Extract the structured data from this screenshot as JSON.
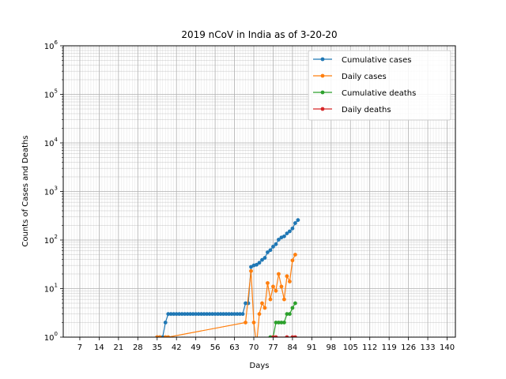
{
  "chart_data": {
    "type": "line",
    "title": "2019 nCoV in India as of 3-20-20",
    "xlabel": "Days",
    "ylabel": "Counts of Cases and Deaths",
    "xlim": [
      1,
      143
    ],
    "ylim": [
      1,
      1000000
    ],
    "yscale": "log",
    "grid": true,
    "legend_position": "top-right",
    "x_ticks": [
      7,
      14,
      21,
      28,
      35,
      42,
      49,
      56,
      63,
      70,
      77,
      84,
      91,
      98,
      105,
      112,
      119,
      126,
      133,
      140
    ],
    "y_ticks": [
      {
        "value": 1,
        "base": "10",
        "exp": "0"
      },
      {
        "value": 10,
        "base": "10",
        "exp": "1"
      },
      {
        "value": 100,
        "base": "10",
        "exp": "2"
      },
      {
        "value": 1000,
        "base": "10",
        "exp": "3"
      },
      {
        "value": 10000,
        "base": "10",
        "exp": "4"
      },
      {
        "value": 100000,
        "base": "10",
        "exp": "5"
      },
      {
        "value": 1000000,
        "base": "10",
        "exp": "6"
      }
    ],
    "series": [
      {
        "name": "Cumulative cases",
        "color": "#1f77b4",
        "points": [
          [
            35,
            1
          ],
          [
            36,
            1
          ],
          [
            37,
            1
          ],
          [
            38,
            2
          ],
          [
            39,
            3
          ],
          [
            40,
            3
          ],
          [
            41,
            3
          ],
          [
            42,
            3
          ],
          [
            43,
            3
          ],
          [
            44,
            3
          ],
          [
            45,
            3
          ],
          [
            46,
            3
          ],
          [
            47,
            3
          ],
          [
            48,
            3
          ],
          [
            49,
            3
          ],
          [
            50,
            3
          ],
          [
            51,
            3
          ],
          [
            52,
            3
          ],
          [
            53,
            3
          ],
          [
            54,
            3
          ],
          [
            55,
            3
          ],
          [
            56,
            3
          ],
          [
            57,
            3
          ],
          [
            58,
            3
          ],
          [
            59,
            3
          ],
          [
            60,
            3
          ],
          [
            61,
            3
          ],
          [
            62,
            3
          ],
          [
            63,
            3
          ],
          [
            64,
            3
          ],
          [
            65,
            3
          ],
          [
            66,
            3
          ],
          [
            67,
            5
          ],
          [
            68,
            5
          ],
          [
            69,
            28
          ],
          [
            70,
            30
          ],
          [
            71,
            31
          ],
          [
            72,
            34
          ],
          [
            73,
            39
          ],
          [
            74,
            43
          ],
          [
            75,
            56
          ],
          [
            76,
            62
          ],
          [
            77,
            73
          ],
          [
            78,
            82
          ],
          [
            79,
            102
          ],
          [
            80,
            113
          ],
          [
            81,
            119
          ],
          [
            82,
            137
          ],
          [
            83,
            151
          ],
          [
            84,
            173
          ],
          [
            85,
            223
          ],
          [
            86,
            258
          ]
        ]
      },
      {
        "name": "Daily cases",
        "color": "#ff7f0e",
        "points": [
          [
            35,
            1
          ],
          [
            36,
            1
          ],
          [
            38,
            1
          ],
          [
            39,
            1
          ],
          [
            67,
            2
          ],
          [
            69,
            23
          ],
          [
            70,
            2
          ],
          [
            71,
            0.7
          ],
          [
            72,
            3
          ],
          [
            73,
            5
          ],
          [
            74,
            4
          ],
          [
            75,
            13
          ],
          [
            76,
            6
          ],
          [
            77,
            11
          ],
          [
            78,
            9
          ],
          [
            79,
            20
          ],
          [
            80,
            11
          ],
          [
            81,
            6
          ],
          [
            82,
            18
          ],
          [
            83,
            14
          ],
          [
            84,
            38
          ],
          [
            85,
            50
          ]
        ]
      },
      {
        "name": "Cumulative deaths",
        "color": "#2ca02c",
        "points": [
          [
            76,
            1
          ],
          [
            77,
            1
          ],
          [
            78,
            2
          ],
          [
            79,
            2
          ],
          [
            80,
            2
          ],
          [
            81,
            2
          ],
          [
            82,
            3
          ],
          [
            83,
            3
          ],
          [
            84,
            4
          ],
          [
            85,
            5
          ]
        ]
      },
      {
        "name": "Daily deaths",
        "color": "#d62728",
        "points": [
          [
            77,
            1
          ],
          [
            78,
            1
          ],
          [
            82,
            1
          ],
          [
            84,
            1
          ],
          [
            85,
            1
          ]
        ]
      }
    ]
  }
}
